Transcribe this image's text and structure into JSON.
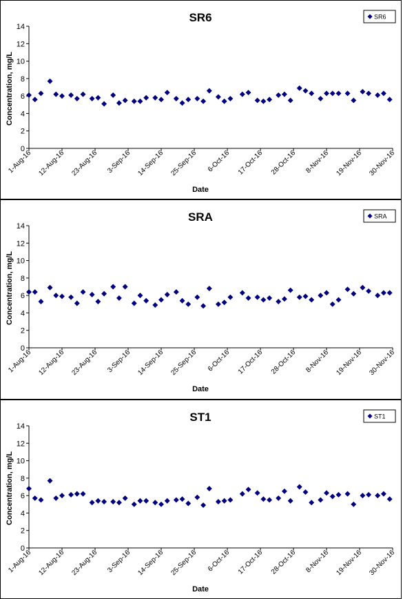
{
  "chart_data": [
    {
      "type": "scatter",
      "title": "SR6",
      "xlabel": "Date",
      "ylabel": "Concentration, mg/L",
      "ylim": [
        0,
        14
      ],
      "yticks": [
        0,
        2,
        4,
        6,
        8,
        10,
        12,
        14
      ],
      "xlim": [
        "2016-08-01",
        "2016-11-30"
      ],
      "xticks": [
        "1-Aug-16",
        "12-Aug-16",
        "23-Aug-16",
        "3-Sep-16",
        "14-Sep-16",
        "25-Sep-16",
        "6-Oct-16",
        "17-Oct-16",
        "28-Oct-16",
        "8-Nov-16",
        "19-Nov-16",
        "30-Nov-16"
      ],
      "grid": false,
      "legend": "top-right",
      "marker_color": "#000080",
      "series": [
        {
          "name": "SR6",
          "x": [
            "2016-08-01",
            "2016-08-03",
            "2016-08-05",
            "2016-08-08",
            "2016-08-10",
            "2016-08-12",
            "2016-08-15",
            "2016-08-17",
            "2016-08-19",
            "2016-08-22",
            "2016-08-24",
            "2016-08-26",
            "2016-08-29",
            "2016-08-31",
            "2016-09-02",
            "2016-09-05",
            "2016-09-07",
            "2016-09-09",
            "2016-09-12",
            "2016-09-14",
            "2016-09-16",
            "2016-09-19",
            "2016-09-21",
            "2016-09-23",
            "2016-09-26",
            "2016-09-28",
            "2016-09-30",
            "2016-10-03",
            "2016-10-05",
            "2016-10-07",
            "2016-10-11",
            "2016-10-13",
            "2016-10-16",
            "2016-10-18",
            "2016-10-20",
            "2016-10-23",
            "2016-10-25",
            "2016-10-27",
            "2016-10-30",
            "2016-11-01",
            "2016-11-03",
            "2016-11-06",
            "2016-11-08",
            "2016-11-10",
            "2016-11-12",
            "2016-11-15",
            "2016-11-17",
            "2016-11-20",
            "2016-11-22",
            "2016-11-25",
            "2016-11-27",
            "2016-11-29"
          ],
          "values": [
            6.1,
            5.6,
            6.3,
            7.7,
            6.2,
            6.0,
            6.1,
            5.7,
            6.2,
            5.7,
            5.8,
            5.1,
            6.1,
            5.2,
            5.5,
            5.4,
            5.4,
            5.8,
            5.8,
            5.6,
            6.4,
            5.7,
            5.2,
            5.6,
            5.7,
            5.4,
            6.6,
            5.9,
            5.4,
            5.7,
            6.2,
            6.4,
            5.5,
            5.4,
            5.6,
            6.1,
            6.2,
            5.5,
            6.9,
            6.6,
            6.3,
            5.7,
            6.3,
            6.3,
            6.3,
            6.3,
            5.5,
            6.5,
            6.3,
            6.1,
            6.3,
            5.6
          ]
        }
      ]
    },
    {
      "type": "scatter",
      "title": "SRA",
      "xlabel": "Date",
      "ylabel": "Concentration, mg/L",
      "ylim": [
        0,
        14
      ],
      "yticks": [
        0,
        2,
        4,
        6,
        8,
        10,
        12,
        14
      ],
      "xlim": [
        "2016-08-01",
        "2016-11-30"
      ],
      "xticks": [
        "1-Aug-16",
        "12-Aug-16",
        "23-Aug-16",
        "3-Sep-16",
        "14-Sep-16",
        "25-Sep-16",
        "6-Oct-16",
        "17-Oct-16",
        "28-Oct-16",
        "8-Nov-16",
        "19-Nov-16",
        "30-Nov-16"
      ],
      "grid": false,
      "legend": "top-right",
      "marker_color": "#000080",
      "series": [
        {
          "name": "SRA",
          "x": [
            "2016-08-01",
            "2016-08-03",
            "2016-08-05",
            "2016-08-08",
            "2016-08-10",
            "2016-08-12",
            "2016-08-15",
            "2016-08-17",
            "2016-08-19",
            "2016-08-22",
            "2016-08-24",
            "2016-08-26",
            "2016-08-29",
            "2016-08-31",
            "2016-09-02",
            "2016-09-05",
            "2016-09-07",
            "2016-09-09",
            "2016-09-12",
            "2016-09-14",
            "2016-09-16",
            "2016-09-19",
            "2016-09-21",
            "2016-09-23",
            "2016-09-26",
            "2016-09-28",
            "2016-09-30",
            "2016-10-03",
            "2016-10-05",
            "2016-10-07",
            "2016-10-11",
            "2016-10-13",
            "2016-10-16",
            "2016-10-18",
            "2016-10-20",
            "2016-10-23",
            "2016-10-25",
            "2016-10-27",
            "2016-10-30",
            "2016-11-01",
            "2016-11-03",
            "2016-11-06",
            "2016-11-08",
            "2016-11-10",
            "2016-11-12",
            "2016-11-15",
            "2016-11-17",
            "2016-11-20",
            "2016-11-22",
            "2016-11-25",
            "2016-11-27",
            "2016-11-29"
          ],
          "values": [
            6.4,
            6.4,
            5.3,
            6.9,
            6.0,
            5.9,
            5.8,
            5.1,
            6.4,
            6.1,
            5.3,
            6.2,
            7.0,
            5.7,
            7.0,
            5.1,
            6.0,
            5.4,
            4.9,
            5.5,
            6.1,
            6.4,
            5.4,
            5.0,
            5.8,
            4.8,
            6.8,
            5.0,
            5.2,
            5.8,
            6.3,
            5.7,
            5.8,
            5.5,
            5.7,
            5.3,
            5.6,
            6.6,
            5.8,
            5.9,
            5.5,
            6.0,
            6.3,
            5.0,
            5.5,
            6.7,
            6.2,
            6.9,
            6.5,
            6.0,
            6.3,
            6.3
          ]
        }
      ]
    },
    {
      "type": "scatter",
      "title": "ST1",
      "xlabel": "Date",
      "ylabel": "Concentration, mg/L",
      "ylim": [
        0,
        14
      ],
      "yticks": [
        0,
        2,
        4,
        6,
        8,
        10,
        12,
        14
      ],
      "xlim": [
        "2016-08-01",
        "2016-11-30"
      ],
      "xticks": [
        "1-Aug-16",
        "12-Aug-16",
        "23-Aug-16",
        "3-Sep-16",
        "14-Sep-16",
        "25-Sep-16",
        "6-Oct-16",
        "17-Oct-16",
        "28-Oct-16",
        "8-Nov-16",
        "19-Nov-16",
        "30-Nov-16"
      ],
      "grid": false,
      "legend": "top-right",
      "marker_color": "#000080",
      "series": [
        {
          "name": "ST1",
          "x": [
            "2016-08-01",
            "2016-08-03",
            "2016-08-05",
            "2016-08-08",
            "2016-08-10",
            "2016-08-12",
            "2016-08-15",
            "2016-08-17",
            "2016-08-19",
            "2016-08-22",
            "2016-08-24",
            "2016-08-26",
            "2016-08-29",
            "2016-08-31",
            "2016-09-02",
            "2016-09-05",
            "2016-09-07",
            "2016-09-09",
            "2016-09-12",
            "2016-09-14",
            "2016-09-16",
            "2016-09-19",
            "2016-09-21",
            "2016-09-23",
            "2016-09-26",
            "2016-09-28",
            "2016-09-30",
            "2016-10-03",
            "2016-10-05",
            "2016-10-07",
            "2016-10-11",
            "2016-10-13",
            "2016-10-16",
            "2016-10-18",
            "2016-10-20",
            "2016-10-23",
            "2016-10-25",
            "2016-10-27",
            "2016-10-30",
            "2016-11-01",
            "2016-11-03",
            "2016-11-06",
            "2016-11-08",
            "2016-11-10",
            "2016-11-12",
            "2016-11-15",
            "2016-11-17",
            "2016-11-20",
            "2016-11-22",
            "2016-11-25",
            "2016-11-27",
            "2016-11-29"
          ],
          "values": [
            6.8,
            5.7,
            5.5,
            7.7,
            5.7,
            6.0,
            6.1,
            6.2,
            6.2,
            5.2,
            5.4,
            5.3,
            5.3,
            5.2,
            5.7,
            5.0,
            5.4,
            5.4,
            5.2,
            5.0,
            5.4,
            5.5,
            5.6,
            5.1,
            5.8,
            4.9,
            6.8,
            5.3,
            5.4,
            5.5,
            6.2,
            6.7,
            6.3,
            5.6,
            5.5,
            5.7,
            6.5,
            5.4,
            7.0,
            6.4,
            5.2,
            5.5,
            6.3,
            5.9,
            6.1,
            6.2,
            5.0,
            6.0,
            6.1,
            6.0,
            6.2,
            5.6
          ]
        }
      ]
    }
  ]
}
